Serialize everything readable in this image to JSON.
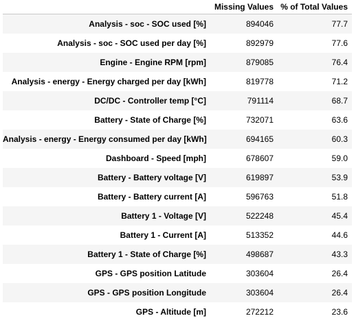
{
  "table": {
    "columns": [
      "",
      "Missing Values",
      "% of Total Values"
    ],
    "rows": [
      {
        "name": "Analysis - soc - SOC used [%]",
        "missing": "894046",
        "pct": "77.7"
      },
      {
        "name": "Analysis - soc - SOC used per day [%]",
        "missing": "892979",
        "pct": "77.6"
      },
      {
        "name": "Engine - Engine RPM [rpm]",
        "missing": "879085",
        "pct": "76.4"
      },
      {
        "name": "Analysis - energy - Energy charged per day [kWh]",
        "missing": "819778",
        "pct": "71.2"
      },
      {
        "name": "DC/DC - Controller temp [°C]",
        "missing": "791114",
        "pct": "68.7"
      },
      {
        "name": "Battery - State of Charge [%]",
        "missing": "732071",
        "pct": "63.6"
      },
      {
        "name": "Analysis - energy - Energy consumed per day [kWh]",
        "missing": "694165",
        "pct": "60.3"
      },
      {
        "name": "Dashboard - Speed [mph]",
        "missing": "678607",
        "pct": "59.0"
      },
      {
        "name": "Battery - Battery voltage [V]",
        "missing": "619897",
        "pct": "53.9"
      },
      {
        "name": "Battery - Battery current [A]",
        "missing": "596763",
        "pct": "51.8"
      },
      {
        "name": "Battery 1 - Voltage [V]",
        "missing": "522248",
        "pct": "45.4"
      },
      {
        "name": "Battery 1 - Current [A]",
        "missing": "513352",
        "pct": "44.6"
      },
      {
        "name": "Battery 1 - State of Charge [%]",
        "missing": "498687",
        "pct": "43.3"
      },
      {
        "name": "GPS - GPS position Latitude",
        "missing": "303604",
        "pct": "26.4"
      },
      {
        "name": "GPS - GPS position Longitude",
        "missing": "303604",
        "pct": "26.4"
      },
      {
        "name": "GPS - Altitude [m]",
        "missing": "272212",
        "pct": "23.6"
      }
    ]
  }
}
